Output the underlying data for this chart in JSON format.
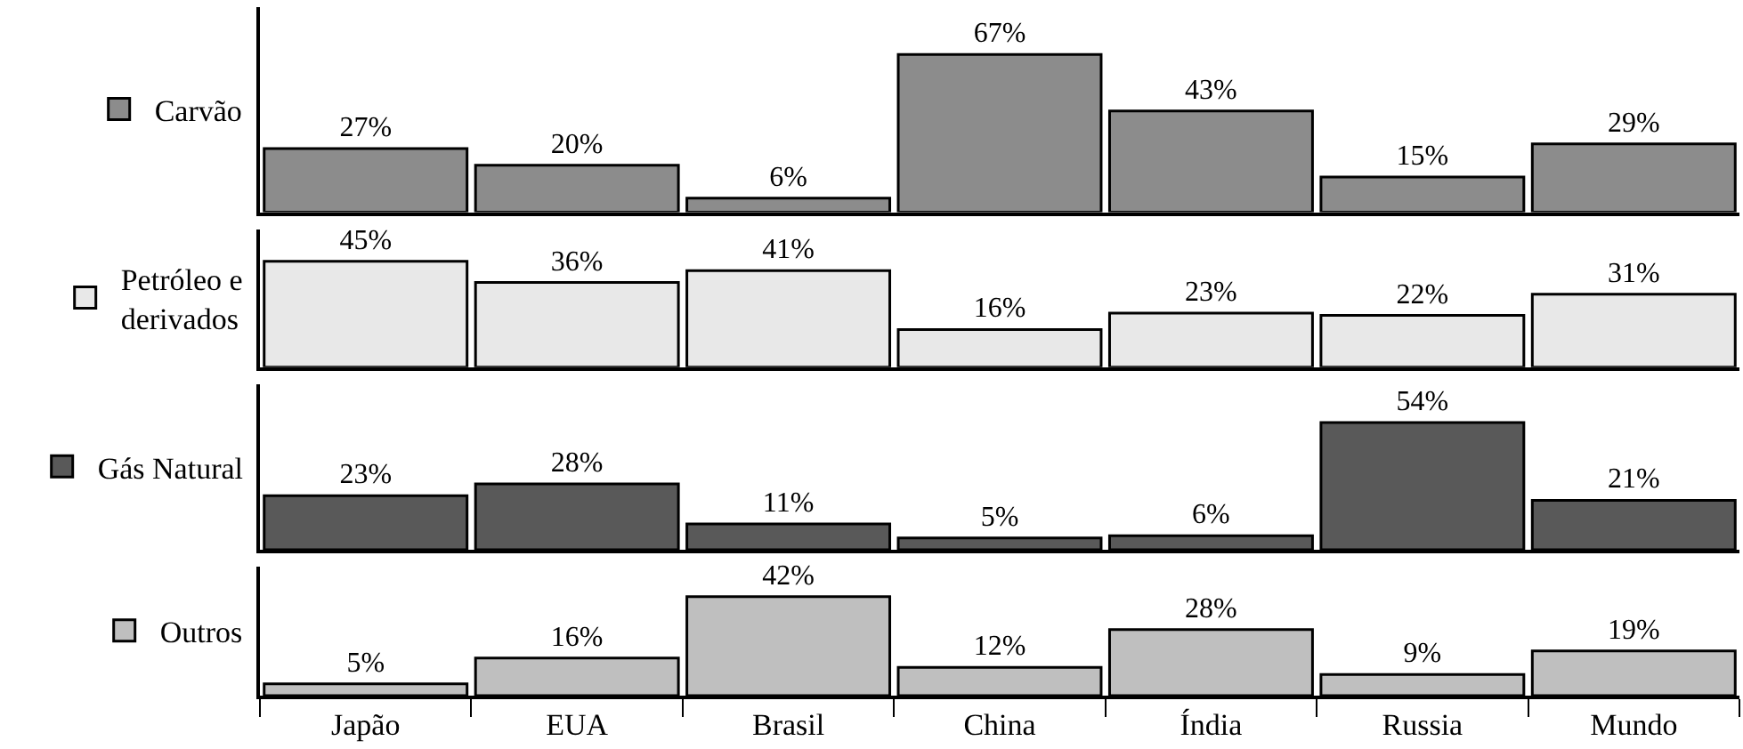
{
  "chart_data": [
    {
      "type": "bar",
      "categories": [
        "Japão",
        "EUA",
        "Brasil",
        "China",
        "Índia",
        "Russia",
        "Mundo"
      ],
      "tick_labels": false,
      "legend": "left",
      "series": [
        {
          "name": "Carvão",
          "color": "#8c8c8c",
          "values": [
            27,
            20,
            6,
            67,
            43,
            15,
            29
          ],
          "value_labels": [
            "27%",
            "20%",
            "6%",
            "67%",
            "43%",
            "15%",
            "29%"
          ]
        }
      ]
    },
    {
      "type": "bar",
      "categories": [
        "Japão",
        "EUA",
        "Brasil",
        "China",
        "Índia",
        "Russia",
        "Mundo"
      ],
      "tick_labels": false,
      "legend": "left",
      "series": [
        {
          "name": "Petróleo e\nderivados",
          "color": "#e8e8e8",
          "values": [
            45,
            36,
            41,
            16,
            23,
            22,
            31
          ],
          "value_labels": [
            "45%",
            "36%",
            "41%",
            "16%",
            "23%",
            "22%",
            "31%"
          ]
        }
      ]
    },
    {
      "type": "bar",
      "categories": [
        "Japão",
        "EUA",
        "Brasil",
        "China",
        "Índia",
        "Russia",
        "Mundo"
      ],
      "tick_labels": false,
      "legend": "left",
      "series": [
        {
          "name": "Gás Natural",
          "color": "#595959",
          "values": [
            23,
            28,
            11,
            5,
            6,
            54,
            21
          ],
          "value_labels": [
            "23%",
            "28%",
            "11%",
            "5%",
            "6%",
            "54%",
            "21%"
          ]
        }
      ]
    },
    {
      "type": "bar",
      "categories": [
        "Japão",
        "EUA",
        "Brasil",
        "China",
        "Índia",
        "Russia",
        "Mundo"
      ],
      "tick_labels": "x",
      "legend": "left",
      "series": [
        {
          "name": "Outros",
          "color": "#bfbfbf",
          "values": [
            5,
            16,
            42,
            12,
            28,
            9,
            19
          ],
          "value_labels": [
            "5%",
            "16%",
            "42%",
            "12%",
            "28%",
            "9%",
            "19%"
          ]
        }
      ]
    }
  ]
}
